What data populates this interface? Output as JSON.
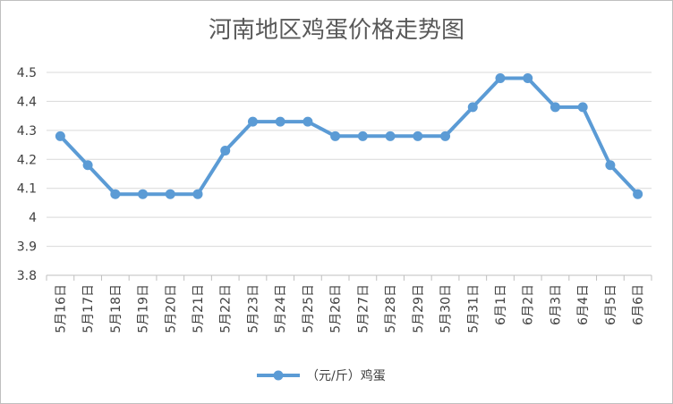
{
  "chart_data": {
    "type": "line",
    "title": "河南地区鸡蛋价格走势图",
    "categories": [
      "5月16日",
      "5月17日",
      "5月18日",
      "5月19日",
      "5月20日",
      "5月21日",
      "5月22日",
      "5月23日",
      "5月24日",
      "5月25日",
      "5月26日",
      "5月27日",
      "5月28日",
      "5月29日",
      "5月30日",
      "5月31日",
      "6月1日",
      "6月2日",
      "6月3日",
      "6月4日",
      "6月5日",
      "6月6日"
    ],
    "series": [
      {
        "name": "（元/斤）鸡蛋",
        "values": [
          4.28,
          4.18,
          4.08,
          4.08,
          4.08,
          4.08,
          4.23,
          4.33,
          4.33,
          4.33,
          4.28,
          4.28,
          4.28,
          4.28,
          4.28,
          4.38,
          4.48,
          4.48,
          4.38,
          4.38,
          4.18,
          4.08
        ]
      }
    ],
    "yticks": [
      "3.8",
      "3.9",
      "4",
      "4.1",
      "4.2",
      "4.3",
      "4.4",
      "4.5"
    ],
    "ylim": [
      3.8,
      4.5
    ],
    "grid": true,
    "legend_position": "bottom",
    "colors": {
      "series": "#5b9bd5",
      "grid": "#d9d9d9",
      "text": "#595959"
    }
  }
}
